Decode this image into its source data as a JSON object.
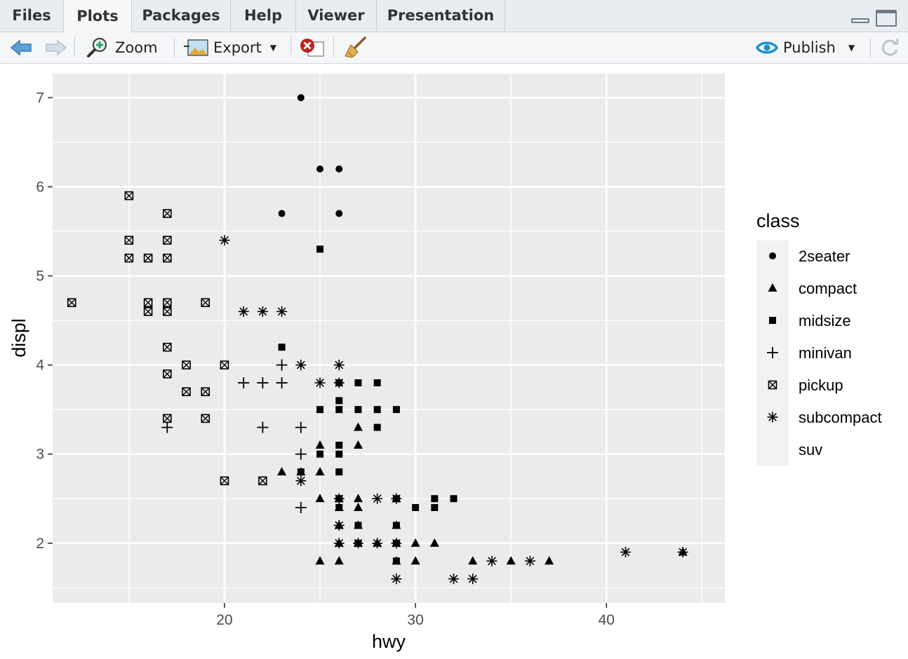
{
  "tabs": [
    {
      "label": "Files"
    },
    {
      "label": "Plots"
    },
    {
      "label": "Packages"
    },
    {
      "label": "Help"
    },
    {
      "label": "Viewer"
    },
    {
      "label": "Presentation"
    }
  ],
  "active_tab": "Plots",
  "toolbar": {
    "zoom_label": "Zoom",
    "export_label": "Export",
    "publish_label": "Publish"
  },
  "chart_data": {
    "type": "scatter",
    "xlabel": "hwy",
    "ylabel": "displ",
    "xlim": [
      11,
      46.2
    ],
    "ylim": [
      1.33,
      7.27
    ],
    "x_ticks": [
      20,
      30,
      40
    ],
    "y_ticks": [
      2,
      3,
      4,
      5,
      6,
      7
    ],
    "x_tick_labels": [
      "20",
      "30",
      "40"
    ],
    "y_tick_labels": [
      "2",
      "3",
      "4",
      "5",
      "6",
      "7"
    ],
    "grid": true,
    "legend": {
      "title": "class",
      "placement": "right",
      "entries": [
        {
          "label": "2seater",
          "shape": "circle"
        },
        {
          "label": "compact",
          "shape": "triangle"
        },
        {
          "label": "midsize",
          "shape": "square"
        },
        {
          "label": "minivan",
          "shape": "plus"
        },
        {
          "label": "pickup",
          "shape": "square-cross"
        },
        {
          "label": "subcompact",
          "shape": "asterisk"
        },
        {
          "label": "suv",
          "shape": "none"
        }
      ]
    },
    "series": [
      {
        "name": "2seater",
        "points": [
          [
            24,
            7.0
          ],
          [
            25,
            6.2
          ],
          [
            26,
            6.2
          ],
          [
            23,
            5.7
          ],
          [
            26,
            5.7
          ]
        ]
      },
      {
        "name": "compact",
        "points": [
          [
            25,
            3.1
          ],
          [
            27,
            3.3
          ],
          [
            27,
            3.1
          ],
          [
            23,
            2.8
          ],
          [
            25,
            2.8
          ],
          [
            24,
            2.8
          ],
          [
            25,
            2.5
          ],
          [
            26,
            2.5
          ],
          [
            27,
            2.5
          ],
          [
            29,
            2.5
          ],
          [
            26,
            2.4
          ],
          [
            27,
            2.4
          ],
          [
            26,
            2.2
          ],
          [
            27,
            2.2
          ],
          [
            29,
            2.2
          ],
          [
            26,
            2.0
          ],
          [
            27,
            2.0
          ],
          [
            28,
            2.0
          ],
          [
            29,
            2.0
          ],
          [
            30,
            2.0
          ],
          [
            31,
            2.0
          ],
          [
            25,
            1.8
          ],
          [
            26,
            1.8
          ],
          [
            29,
            1.8
          ],
          [
            30,
            1.8
          ],
          [
            33,
            1.8
          ],
          [
            35,
            1.8
          ],
          [
            37,
            1.8
          ],
          [
            44,
            1.9
          ]
        ]
      },
      {
        "name": "midsize",
        "points": [
          [
            25,
            5.3
          ],
          [
            23,
            4.2
          ],
          [
            26,
            3.8
          ],
          [
            27,
            3.8
          ],
          [
            28,
            3.8
          ],
          [
            26,
            3.6
          ],
          [
            25,
            3.5
          ],
          [
            26,
            3.5
          ],
          [
            27,
            3.5
          ],
          [
            28,
            3.5
          ],
          [
            29,
            3.5
          ],
          [
            28,
            3.3
          ],
          [
            25,
            3.0
          ],
          [
            26,
            3.0
          ],
          [
            26,
            3.1
          ],
          [
            24,
            2.8
          ],
          [
            26,
            2.8
          ],
          [
            26,
            2.5
          ],
          [
            29,
            2.5
          ],
          [
            31,
            2.5
          ],
          [
            32,
            2.5
          ],
          [
            26,
            2.4
          ],
          [
            30,
            2.4
          ],
          [
            31,
            2.4
          ],
          [
            27,
            2.2
          ],
          [
            29,
            2.2
          ],
          [
            27,
            2.0
          ],
          [
            29,
            2.0
          ],
          [
            29,
            1.8
          ]
        ]
      },
      {
        "name": "minivan",
        "points": [
          [
            17,
            3.3
          ],
          [
            22,
            3.3
          ],
          [
            24,
            3.3
          ],
          [
            21,
            3.8
          ],
          [
            22,
            3.8
          ],
          [
            23,
            3.8
          ],
          [
            23,
            4.0
          ],
          [
            24,
            3.0
          ],
          [
            24,
            2.4
          ]
        ]
      },
      {
        "name": "pickup",
        "points": [
          [
            15,
            5.9
          ],
          [
            17,
            5.7
          ],
          [
            15,
            5.4
          ],
          [
            17,
            5.4
          ],
          [
            15,
            5.2
          ],
          [
            16,
            5.2
          ],
          [
            17,
            5.2
          ],
          [
            12,
            4.7
          ],
          [
            16,
            4.7
          ],
          [
            17,
            4.7
          ],
          [
            19,
            4.7
          ],
          [
            16,
            4.6
          ],
          [
            17,
            4.6
          ],
          [
            17,
            4.2
          ],
          [
            18,
            4.0
          ],
          [
            20,
            4.0
          ],
          [
            17,
            3.9
          ],
          [
            18,
            3.7
          ],
          [
            19,
            3.7
          ],
          [
            17,
            3.4
          ],
          [
            19,
            3.4
          ],
          [
            20,
            2.7
          ],
          [
            22,
            2.7
          ]
        ]
      },
      {
        "name": "subcompact",
        "points": [
          [
            20,
            5.4
          ],
          [
            21,
            4.6
          ],
          [
            22,
            4.6
          ],
          [
            23,
            4.6
          ],
          [
            24,
            4.0
          ],
          [
            26,
            4.0
          ],
          [
            25,
            3.8
          ],
          [
            26,
            3.8
          ],
          [
            24,
            2.7
          ],
          [
            26,
            2.5
          ],
          [
            28,
            2.5
          ],
          [
            29,
            2.5
          ],
          [
            26,
            2.2
          ],
          [
            26,
            2.0
          ],
          [
            27,
            2.0
          ],
          [
            28,
            2.0
          ],
          [
            29,
            2.0
          ],
          [
            34,
            1.8
          ],
          [
            36,
            1.8
          ],
          [
            41,
            1.9
          ],
          [
            44,
            1.9
          ],
          [
            29,
            1.6
          ],
          [
            32,
            1.6
          ],
          [
            33,
            1.6
          ]
        ]
      }
    ]
  }
}
